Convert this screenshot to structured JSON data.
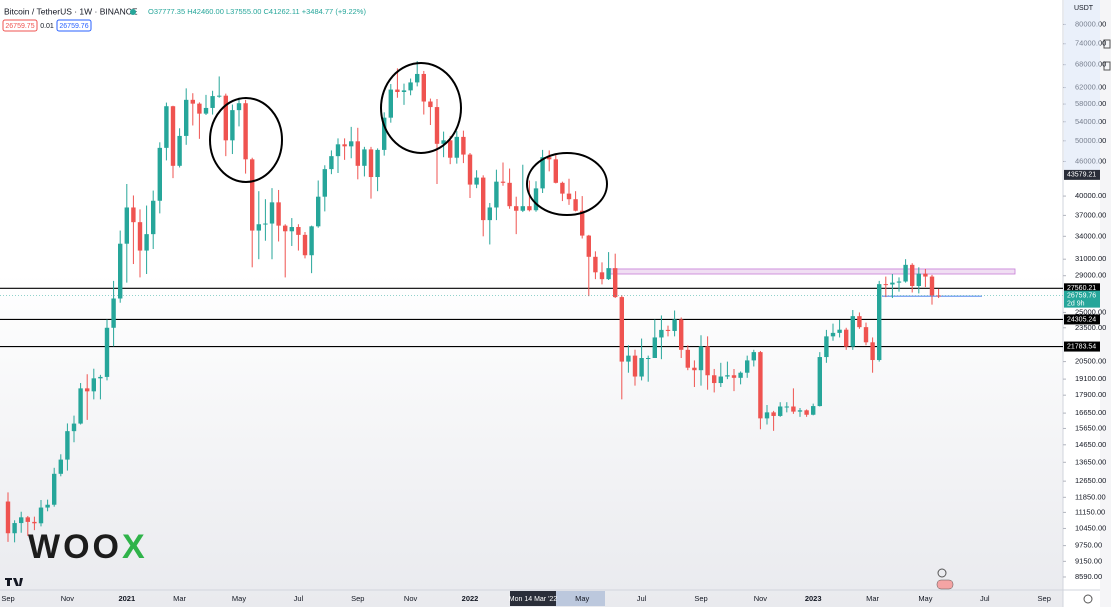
{
  "header": {
    "symbol": "Bitcoin / TetherUS · 1W · BINANCE",
    "ohlc": "O37777.35 H42460.00 L37555.00 C41262.11 +3484.77 (+9.22%)",
    "sell_price": "26759.75",
    "spread": "0.01",
    "buy_price": "26759.76",
    "currency": "USDT"
  },
  "watermark": {
    "main": "WOO",
    "accent": "X"
  },
  "chart_data": {
    "type": "candlestick",
    "log_scale": true,
    "grid": false,
    "up_color": "#26a69a",
    "down_color": "#ef5350",
    "categories": [
      "Sep",
      null,
      null,
      null,
      null,
      null,
      null,
      null,
      null,
      "Nov",
      null,
      null,
      null,
      null,
      null,
      null,
      null,
      null,
      "2021",
      null,
      null,
      null,
      null,
      null,
      null,
      null,
      "Mar",
      null,
      null,
      null,
      null,
      null,
      null,
      null,
      null,
      "May",
      null,
      null,
      null,
      null,
      null,
      null,
      null,
      null,
      "Jul",
      null,
      null,
      null,
      null,
      null,
      null,
      null,
      null,
      "Sep",
      null,
      null,
      null,
      null,
      null,
      null,
      null,
      "Nov",
      null,
      null,
      null,
      null,
      null,
      null,
      null,
      null,
      "2022",
      null,
      null,
      null,
      null,
      null,
      null,
      null,
      null,
      null,
      "Mon 14 Mar '22",
      null,
      null,
      null,
      null,
      null,
      null,
      "May",
      null,
      null,
      null,
      null,
      null,
      null,
      null,
      null,
      "Jul",
      null,
      null,
      null,
      null,
      null,
      null,
      null,
      null,
      "Sep",
      null,
      null,
      null,
      null,
      null,
      null,
      null,
      null,
      "Nov",
      null,
      null,
      null,
      null,
      null,
      null,
      null,
      "2023",
      null,
      null,
      null,
      null,
      null,
      null,
      null,
      null,
      "Mar",
      null,
      null,
      null,
      null,
      null,
      null,
      null,
      "May",
      null,
      null,
      null,
      null,
      null,
      null,
      null,
      null,
      "Jul",
      null,
      null,
      null,
      null,
      null,
      null,
      null,
      null,
      "Sep",
      null
    ],
    "open": [
      11650,
      10250,
      10680,
      10930,
      10730,
      10670,
      11370,
      11500,
      13030,
      13800,
      15480,
      15960,
      18400,
      18180,
      19160,
      19270,
      23500,
      26450,
      33000,
      38200,
      36000,
      32100,
      34300,
      39250,
      48600,
      57500,
      45200,
      51000,
      59000,
      58100,
      55800,
      57100,
      59900,
      60000,
      50100,
      56600,
      58200,
      46400,
      34800,
      35700,
      35800,
      39000,
      35500,
      34700,
      35300,
      34200,
      31500,
      35400,
      39900,
      44600,
      47000,
      49300,
      48900,
      49900,
      45200,
      48300,
      43200,
      48200,
      54900,
      61500,
      60900,
      61300,
      63300,
      65500,
      58600,
      57300,
      49400,
      50100,
      46700,
      50800,
      47300,
      41900,
      43100,
      36300,
      38200,
      42400,
      42200,
      38400,
      37700,
      38400,
      37777.35,
      41262,
      46800,
      46400,
      42200,
      40400,
      39500,
      37700,
      34100,
      31300,
      29400,
      28600,
      29900,
      26600,
      20500,
      21000,
      19300,
      20800,
      20800,
      22600,
      23300,
      23200,
      24300,
      21500,
      20000,
      19800,
      21800,
      19400,
      18800,
      19300,
      19400,
      19200,
      19600,
      20600,
      21300,
      16300,
      16700,
      16460,
      17100,
      17100,
      16750,
      16840,
      16540,
      17130,
      20880,
      22700,
      23020,
      23320,
      21780,
      24630,
      23560,
      22160,
      20630,
      28030,
      27990,
      28200,
      28330,
      30300,
      27820,
      29240,
      28900,
      26780,
      null,
      null,
      null,
      null,
      null,
      null,
      null,
      null,
      null,
      null,
      null,
      null,
      null,
      null,
      null,
      null,
      null
    ],
    "high": [
      12090,
      10800,
      11180,
      10990,
      10960,
      11720,
      11740,
      13350,
      14100,
      15970,
      16480,
      18800,
      19480,
      19920,
      19430,
      24300,
      28400,
      34800,
      42000,
      40100,
      37900,
      38500,
      40900,
      49700,
      58350,
      57600,
      52600,
      61800,
      60600,
      58400,
      60200,
      61200,
      64850,
      60500,
      57900,
      59500,
      59000,
      46700,
      40800,
      39500,
      41300,
      41000,
      35700,
      36600,
      35700,
      34600,
      35500,
      42600,
      45300,
      48100,
      50500,
      50500,
      52900,
      52700,
      48800,
      48800,
      48500,
      56100,
      62900,
      67000,
      63000,
      64300,
      69000,
      66300,
      59300,
      59200,
      51900,
      51000,
      52000,
      52100,
      47600,
      44400,
      43500,
      38900,
      44500,
      45800,
      44700,
      39900,
      45400,
      42600,
      42460,
      48200,
      48100,
      47200,
      42400,
      42900,
      40800,
      40000,
      34200,
      32000,
      30600,
      31900,
      31700,
      26800,
      21900,
      21500,
      22500,
      21000,
      24300,
      24700,
      23700,
      25200,
      24500,
      21900,
      20600,
      22800,
      22700,
      19900,
      20400,
      20500,
      19900,
      19700,
      21000,
      21500,
      21400,
      17200,
      16800,
      17400,
      17400,
      18400,
      17000,
      16900,
      17300,
      21300,
      23300,
      23900,
      24250,
      23500,
      25250,
      25000,
      24000,
      22600,
      28400,
      28900,
      29200,
      28800,
      31000,
      30500,
      30000,
      29800,
      29100,
      27500,
      null,
      null,
      null,
      null,
      null,
      null,
      null,
      null,
      null,
      null,
      null,
      null,
      null,
      null,
      null,
      null,
      null
    ],
    "low": [
      9900,
      9880,
      10270,
      10140,
      10380,
      10540,
      11200,
      11410,
      12900,
      13200,
      14800,
      15900,
      16200,
      17600,
      17600,
      19000,
      21800,
      26000,
      28200,
      30400,
      28800,
      29200,
      32300,
      37300,
      46200,
      43000,
      44900,
      49200,
      53200,
      50400,
      55500,
      55600,
      59500,
      47000,
      47400,
      53000,
      43800,
      30000,
      31000,
      33400,
      31000,
      33300,
      28800,
      32700,
      32100,
      31100,
      29300,
      35200,
      37600,
      43700,
      43900,
      46300,
      46600,
      42800,
      43300,
      39600,
      40800,
      47100,
      53800,
      59500,
      57800,
      60100,
      62300,
      55600,
      53300,
      42000,
      46800,
      45500,
      45600,
      45700,
      39700,
      41300,
      34000,
      32900,
      36300,
      41700,
      38000,
      34300,
      37500,
      37600,
      37555,
      40500,
      44200,
      42100,
      39200,
      38600,
      37600,
      33700,
      26700,
      28600,
      28000,
      28500,
      26500,
      17600,
      19600,
      18600,
      19000,
      18900,
      20800,
      20700,
      22700,
      22700,
      20800,
      19800,
      18500,
      18600,
      18300,
      18100,
      18500,
      19100,
      18200,
      18700,
      19200,
      20100,
      15600,
      15900,
      15500,
      16400,
      16700,
      16600,
      16400,
      16400,
      16500,
      17100,
      20400,
      22300,
      22600,
      21500,
      21500,
      23400,
      21900,
      19600,
      20500,
      26600,
      26500,
      27200,
      28200,
      27100,
      27000,
      27700,
      25800,
      26500,
      null,
      null,
      null,
      null,
      null,
      null,
      null,
      null,
      null,
      null,
      null,
      null,
      null,
      null,
      null,
      null,
      null
    ],
    "close": [
      10250,
      10680,
      10930,
      10730,
      10670,
      11370,
      11500,
      13030,
      13800,
      15480,
      15960,
      18400,
      18180,
      19160,
      19270,
      23500,
      26450,
      33000,
      38200,
      36000,
      32100,
      34300,
      39250,
      48600,
      57500,
      45200,
      51000,
      59000,
      58100,
      55800,
      57100,
      59900,
      60000,
      50100,
      56600,
      58200,
      46400,
      34800,
      35700,
      35800,
      39000,
      35500,
      34700,
      35300,
      34200,
      31500,
      35400,
      39900,
      44600,
      47000,
      49300,
      48900,
      49900,
      45200,
      48300,
      43200,
      48200,
      54900,
      61500,
      60900,
      61300,
      63300,
      65500,
      58600,
      57300,
      49400,
      50100,
      46700,
      50800,
      47300,
      41900,
      43100,
      36300,
      38200,
      42400,
      42200,
      38400,
      37700,
      38400,
      37777.34,
      41262.11,
      46800,
      46400,
      42200,
      40400,
      39500,
      37700,
      34100,
      31300,
      29400,
      28600,
      29900,
      26600,
      20500,
      21000,
      19300,
      20800,
      20800,
      22600,
      23300,
      23200,
      24300,
      21500,
      20000,
      19800,
      21800,
      19400,
      18800,
      19300,
      19400,
      19200,
      19600,
      20600,
      21300,
      16300,
      16700,
      16460,
      17100,
      17100,
      16750,
      16840,
      16540,
      17130,
      20880,
      22700,
      23020,
      23320,
      21780,
      24630,
      23560,
      22160,
      20630,
      28030,
      27990,
      28200,
      28330,
      30300,
      27820,
      29240,
      28900,
      26780,
      26759.76,
      null,
      null,
      null,
      null,
      null,
      null,
      null,
      null,
      null,
      null,
      null,
      null,
      null,
      null,
      null,
      null,
      null
    ],
    "ylim": [
      8150,
      88300
    ],
    "yticks": [
      {
        "value": 80000,
        "label": "80000.00"
      },
      {
        "value": 74000,
        "label": "74000.00"
      },
      {
        "value": 68000,
        "label": "68000.00"
      },
      {
        "value": 62000,
        "label": "62000.00"
      },
      {
        "value": 58000,
        "label": "58000.00"
      },
      {
        "value": 54000,
        "label": "54000.00"
      },
      {
        "value": 50000,
        "label": "50000.00"
      },
      {
        "value": 46000,
        "label": "46000.00"
      },
      {
        "value": 40000,
        "label": "40000.00"
      },
      {
        "value": 37000,
        "label": "37000.00"
      },
      {
        "value": 34000,
        "label": "34000.00"
      },
      {
        "value": 31000,
        "label": "31000.00"
      },
      {
        "value": 29000,
        "label": "29000.00"
      },
      {
        "value": 25000,
        "label": "25000.00"
      },
      {
        "value": 23500,
        "label": "23500.00"
      },
      {
        "value": 20500,
        "label": "20500.00"
      },
      {
        "value": 19100,
        "label": "19100.00"
      },
      {
        "value": 17900,
        "label": "17900.00"
      },
      {
        "value": 16650,
        "label": "16650.00"
      },
      {
        "value": 15650,
        "label": "15650.00"
      },
      {
        "value": 14650,
        "label": "14650.00"
      },
      {
        "value": 13650,
        "label": "13650.00"
      },
      {
        "value": 12650,
        "label": "12650.00"
      },
      {
        "value": 11850,
        "label": "11850.00"
      },
      {
        "value": 11150,
        "label": "11150.00"
      },
      {
        "value": 10450,
        "label": "10450.00"
      },
      {
        "value": 9750,
        "label": "9750.00"
      },
      {
        "value": 9150,
        "label": "9150.00"
      },
      {
        "value": 8590,
        "label": "8590.00"
      }
    ],
    "levels": [
      27560.21,
      24305.24,
      21783.54
    ],
    "crosshair_price": 43579.21,
    "last_price": 26759.76,
    "countdown": "2d 9h",
    "zone": [
      29200,
      29800
    ],
    "zone_color": "#e1bee7",
    "marker_line": 26700,
    "marker_color": "#5b8def"
  }
}
